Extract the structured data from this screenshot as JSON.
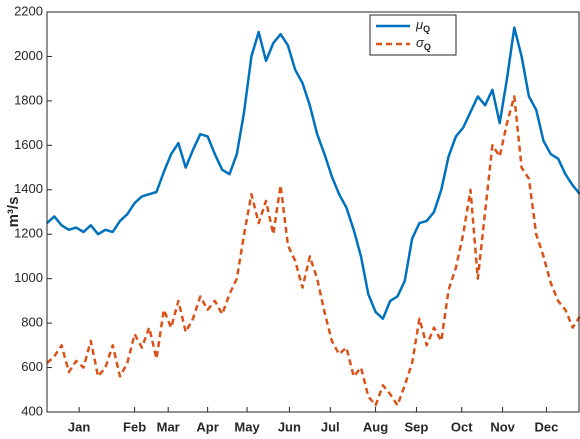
{
  "chart_data": {
    "type": "line",
    "y_label": "m³/s",
    "x": [
      0,
      5,
      10,
      15,
      20,
      25,
      30,
      35,
      40,
      45,
      50,
      55,
      60,
      65,
      70,
      75,
      80,
      85,
      90,
      95,
      100,
      105,
      110,
      115,
      120,
      125,
      130,
      135,
      140,
      145,
      150,
      155,
      160,
      165,
      170,
      175,
      180,
      185,
      190,
      195,
      200,
      205,
      210,
      215,
      220,
      225,
      230,
      235,
      240,
      245,
      250,
      255,
      260,
      265,
      270,
      275,
      280,
      285,
      290,
      295,
      300,
      305,
      310,
      315,
      320,
      325,
      330,
      335,
      340,
      345,
      350,
      355,
      360,
      365
    ],
    "series": [
      {
        "name": "μQ",
        "color": "#0072bd",
        "dash": false,
        "values": [
          1250,
          1280,
          1240,
          1220,
          1230,
          1210,
          1240,
          1200,
          1220,
          1210,
          1260,
          1290,
          1340,
          1370,
          1380,
          1390,
          1480,
          1560,
          1610,
          1500,
          1580,
          1650,
          1640,
          1560,
          1490,
          1470,
          1560,
          1750,
          2000,
          2110,
          1980,
          2060,
          2100,
          2050,
          1940,
          1880,
          1780,
          1650,
          1560,
          1460,
          1380,
          1320,
          1220,
          1100,
          930,
          850,
          820,
          900,
          920,
          990,
          1180,
          1250,
          1260,
          1300,
          1400,
          1550,
          1640,
          1680,
          1750,
          1820,
          1780,
          1850,
          1700,
          1900,
          2130,
          2000,
          1820,
          1760,
          1620,
          1560,
          1540,
          1470,
          1420,
          1380
        ]
      },
      {
        "name": "σQ",
        "color": "#d95319",
        "dash": true,
        "values": [
          620,
          650,
          700,
          580,
          630,
          600,
          720,
          560,
          600,
          700,
          560,
          620,
          750,
          690,
          780,
          640,
          860,
          780,
          900,
          760,
          820,
          920,
          860,
          900,
          840,
          930,
          1000,
          1200,
          1380,
          1250,
          1350,
          1200,
          1420,
          1150,
          1080,
          960,
          1100,
          1000,
          850,
          720,
          660,
          690,
          560,
          600,
          470,
          430,
          520,
          480,
          430,
          520,
          620,
          820,
          700,
          780,
          720,
          950,
          1050,
          1200,
          1400,
          1000,
          1300,
          1600,
          1550,
          1700,
          1820,
          1500,
          1450,
          1200,
          1100,
          980,
          900,
          860,
          780,
          830
        ]
      }
    ],
    "xlim": [
      0,
      365
    ],
    "xticks": [
      {
        "value": 22,
        "label": "Jan"
      },
      {
        "value": 60,
        "label": "Feb"
      },
      {
        "value": 83,
        "label": "Mar"
      },
      {
        "value": 110,
        "label": "Apr"
      },
      {
        "value": 137,
        "label": "May"
      },
      {
        "value": 166,
        "label": "Jun"
      },
      {
        "value": 194,
        "label": "Jul"
      },
      {
        "value": 225,
        "label": "Aug"
      },
      {
        "value": 253,
        "label": "Sep"
      },
      {
        "value": 284,
        "label": "Oct"
      },
      {
        "value": 312,
        "label": "Nov"
      },
      {
        "value": 342,
        "label": "Dec"
      }
    ],
    "ylim": [
      400,
      2200
    ],
    "yticks": [
      400,
      600,
      800,
      1000,
      1200,
      1400,
      1600,
      1800,
      2000,
      2200
    ],
    "legend": "top-right"
  }
}
